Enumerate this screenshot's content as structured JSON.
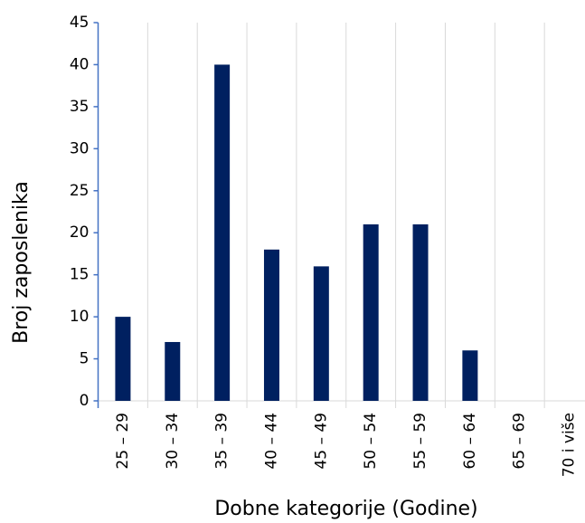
{
  "chart_data": {
    "type": "bar",
    "xlabel": "Dobne kategorije (Godine)",
    "ylabel": "Broj zaposlenika",
    "categories": [
      "25 – 29",
      "30 – 34",
      "35 – 39",
      "40 – 44",
      "45 – 49",
      "50 – 54",
      "55 – 59",
      "60 – 64",
      "65 – 69",
      "70 i više"
    ],
    "values": [
      10,
      7,
      40,
      18,
      16,
      21,
      21,
      6,
      0,
      0
    ],
    "color": "#002060",
    "ylim": [
      0,
      45
    ],
    "yticks": [
      0,
      5,
      10,
      15,
      20,
      25,
      30,
      35,
      40,
      45
    ],
    "grid": true
  }
}
